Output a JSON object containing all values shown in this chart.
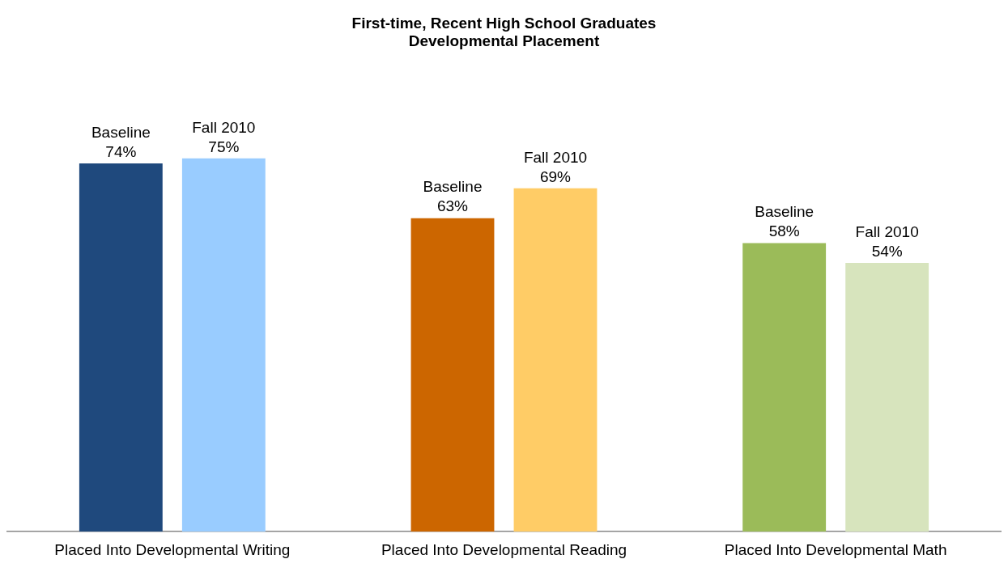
{
  "chart_data": {
    "type": "bar",
    "title": "First-time, Recent High School Graduates\nDevelopmental Placement",
    "categories": [
      "Placed Into Developmental Writing",
      "Placed Into Developmental Reading",
      "Placed Into Developmental Math"
    ],
    "series": [
      {
        "name": "Baseline",
        "colors": [
          "#1f497d",
          "#cc6600",
          "#9bbb59"
        ],
        "values": [
          74,
          63,
          58
        ],
        "value_labels": [
          "74%",
          "63%",
          "58%"
        ]
      },
      {
        "name": "Fall 2010",
        "colors": [
          "#99ccff",
          "#ffcc66",
          "#d7e4bd"
        ],
        "values": [
          75,
          69,
          54
        ],
        "value_labels": [
          "75%",
          "69%",
          "54%"
        ]
      }
    ]
  }
}
